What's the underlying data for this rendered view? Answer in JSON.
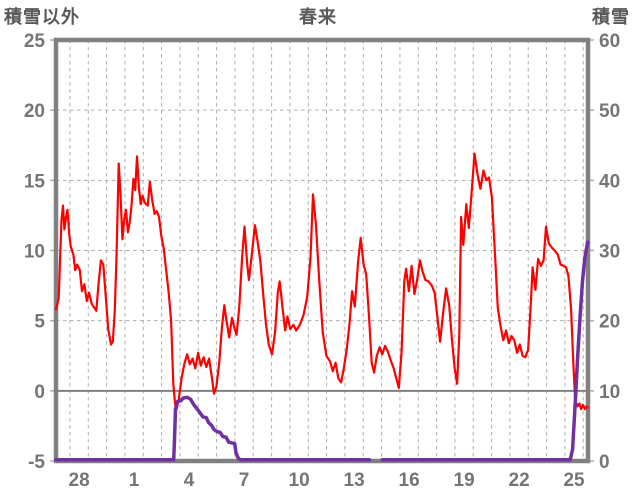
{
  "chart_data": {
    "type": "line",
    "title": "春来",
    "grid": true,
    "legend": false,
    "left_axis": {
      "title": "積雪以外",
      "min": -5,
      "max": 25,
      "ticks": [
        25,
        20,
        15,
        10,
        5,
        0,
        -5
      ]
    },
    "right_axis": {
      "title": "積雪",
      "min": 0,
      "max": 60,
      "ticks": [
        60,
        50,
        40,
        30,
        20,
        10,
        0
      ]
    },
    "x_axis": {
      "unit": "day",
      "tick_labels": [
        "28",
        "1",
        "4",
        "7",
        "10",
        "13",
        "16",
        "19",
        "22",
        "25"
      ],
      "label_positions": [
        1.26,
        4.26,
        7.26,
        10.26,
        13.26,
        16.26,
        19.26,
        22.26,
        25.26,
        28.26
      ],
      "gridline_first": 0.76,
      "gridline_step": 1,
      "gridline_count": 29,
      "span": 29.02
    },
    "zero_line": 0,
    "series": [
      {
        "name": "積雪以外",
        "axis": "left",
        "color": "#FF0000",
        "width": 2.2,
        "segments": [
          [
            [
              0,
              5.8
            ],
            [
              0.15,
              6.6
            ],
            [
              0.3,
              12.2
            ],
            [
              0.38,
              13.2
            ],
            [
              0.46,
              11.5
            ],
            [
              0.55,
              12.4
            ],
            [
              0.63,
              12.9
            ],
            [
              0.72,
              11.2
            ],
            [
              0.8,
              10.3
            ],
            [
              0.95,
              9.7
            ],
            [
              1.05,
              8.6
            ],
            [
              1.15,
              9.0
            ],
            [
              1.3,
              8.6
            ],
            [
              1.42,
              7.1
            ],
            [
              1.55,
              7.6
            ],
            [
              1.68,
              6.4
            ],
            [
              1.8,
              7.0
            ],
            [
              1.95,
              6.2
            ],
            [
              2.1,
              5.9
            ],
            [
              2.2,
              5.7
            ],
            [
              2.32,
              7.6
            ],
            [
              2.45,
              9.3
            ],
            [
              2.58,
              9.0
            ],
            [
              2.72,
              6.6
            ],
            [
              2.85,
              4.4
            ],
            [
              3.0,
              3.3
            ],
            [
              3.1,
              3.5
            ],
            [
              3.2,
              5.6
            ],
            [
              3.3,
              9.5
            ],
            [
              3.42,
              16.2
            ],
            [
              3.52,
              14.0
            ],
            [
              3.62,
              10.8
            ],
            [
              3.72,
              12.2
            ],
            [
              3.82,
              12.9
            ],
            [
              3.92,
              11.3
            ],
            [
              4.02,
              12.0
            ],
            [
              4.12,
              13.2
            ],
            [
              4.22,
              15.1
            ],
            [
              4.32,
              14.3
            ],
            [
              4.42,
              16.7
            ],
            [
              4.52,
              14.5
            ],
            [
              4.62,
              13.3
            ],
            [
              4.72,
              13.9
            ],
            [
              4.85,
              13.4
            ],
            [
              5.0,
              13.2
            ],
            [
              5.12,
              14.9
            ],
            [
              5.25,
              13.6
            ],
            [
              5.38,
              12.6
            ],
            [
              5.5,
              12.8
            ],
            [
              5.62,
              12.4
            ],
            [
              5.75,
              11.0
            ],
            [
              5.88,
              10.1
            ],
            [
              6.0,
              8.7
            ],
            [
              6.15,
              7.0
            ],
            [
              6.28,
              5.0
            ],
            [
              6.4,
              0.5
            ],
            [
              6.5,
              -1.0
            ],
            [
              6.58,
              -1.3
            ],
            [
              6.7,
              -0.6
            ],
            [
              6.85,
              0.9
            ],
            [
              7.0,
              1.9
            ],
            [
              7.15,
              2.6
            ],
            [
              7.3,
              1.9
            ],
            [
              7.45,
              2.3
            ],
            [
              7.6,
              1.6
            ],
            [
              7.75,
              2.7
            ],
            [
              7.9,
              1.8
            ],
            [
              8.05,
              2.4
            ],
            [
              8.2,
              1.7
            ],
            [
              8.35,
              2.3
            ],
            [
              8.5,
              1.0
            ],
            [
              8.62,
              -0.2
            ],
            [
              8.75,
              0.3
            ],
            [
              8.9,
              2.0
            ],
            [
              9.05,
              4.5
            ],
            [
              9.18,
              6.1
            ],
            [
              9.3,
              5.0
            ],
            [
              9.45,
              3.8
            ],
            [
              9.6,
              5.2
            ],
            [
              9.75,
              4.4
            ],
            [
              9.85,
              4.0
            ],
            [
              10.0,
              6.0
            ],
            [
              10.15,
              9.5
            ],
            [
              10.28,
              11.7
            ],
            [
              10.42,
              9.2
            ],
            [
              10.52,
              7.9
            ],
            [
              10.68,
              9.7
            ],
            [
              10.85,
              11.8
            ],
            [
              11.0,
              10.6
            ],
            [
              11.15,
              9.2
            ],
            [
              11.3,
              6.9
            ],
            [
              11.45,
              4.8
            ],
            [
              11.6,
              3.3
            ],
            [
              11.78,
              2.6
            ],
            [
              11.95,
              4.2
            ],
            [
              12.1,
              7.0
            ],
            [
              12.2,
              7.8
            ],
            [
              12.35,
              6.0
            ],
            [
              12.5,
              4.3
            ],
            [
              12.62,
              5.3
            ],
            [
              12.78,
              4.4
            ],
            [
              12.95,
              4.7
            ],
            [
              13.1,
              4.3
            ],
            [
              13.3,
              4.7
            ],
            [
              13.5,
              5.4
            ],
            [
              13.7,
              6.7
            ],
            [
              13.88,
              9.5
            ],
            [
              14.02,
              14.0
            ],
            [
              14.18,
              11.8
            ],
            [
              14.35,
              8.0
            ],
            [
              14.55,
              4.2
            ],
            [
              14.75,
              2.5
            ],
            [
              14.95,
              2.1
            ],
            [
              15.1,
              1.4
            ],
            [
              15.25,
              2.0
            ],
            [
              15.4,
              0.9
            ],
            [
              15.55,
              0.6
            ],
            [
              15.7,
              1.6
            ],
            [
              15.85,
              2.9
            ],
            [
              16.0,
              4.6
            ],
            [
              16.15,
              7.1
            ],
            [
              16.3,
              6.0
            ],
            [
              16.48,
              9.2
            ],
            [
              16.62,
              10.9
            ],
            [
              16.78,
              9.0
            ],
            [
              16.92,
              8.3
            ],
            [
              17.08,
              5.2
            ],
            [
              17.22,
              2.0
            ],
            [
              17.35,
              1.3
            ],
            [
              17.5,
              2.5
            ],
            [
              17.65,
              3.1
            ],
            [
              17.8,
              2.6
            ],
            [
              17.95,
              3.2
            ],
            [
              18.1,
              2.8
            ],
            [
              18.25,
              2.2
            ],
            [
              18.42,
              1.6
            ],
            [
              18.58,
              0.8
            ],
            [
              18.7,
              0.2
            ],
            [
              18.85,
              2.8
            ],
            [
              19.0,
              7.8
            ],
            [
              19.1,
              8.7
            ],
            [
              19.25,
              7.1
            ],
            [
              19.4,
              8.9
            ],
            [
              19.55,
              6.9
            ],
            [
              19.7,
              7.9
            ],
            [
              19.85,
              9.3
            ],
            [
              20.0,
              8.5
            ],
            [
              20.15,
              7.9
            ],
            [
              20.32,
              7.8
            ],
            [
              20.5,
              7.5
            ],
            [
              20.65,
              7.0
            ],
            [
              20.8,
              5.3
            ],
            [
              20.95,
              3.5
            ],
            [
              21.12,
              5.6
            ],
            [
              21.28,
              7.3
            ],
            [
              21.45,
              6.1
            ],
            [
              21.6,
              3.6
            ],
            [
              21.75,
              1.6
            ],
            [
              21.88,
              0.5
            ],
            [
              22.0,
              4.0
            ],
            [
              22.1,
              12.4
            ],
            [
              22.22,
              10.4
            ],
            [
              22.38,
              13.3
            ],
            [
              22.52,
              11.6
            ],
            [
              22.68,
              14.3
            ],
            [
              22.83,
              16.9
            ],
            [
              23.0,
              15.4
            ],
            [
              23.15,
              14.4
            ],
            [
              23.32,
              15.7
            ],
            [
              23.48,
              15.0
            ],
            [
              23.62,
              15.2
            ],
            [
              23.78,
              13.8
            ],
            [
              23.95,
              9.6
            ],
            [
              24.1,
              5.9
            ],
            [
              24.25,
              4.6
            ],
            [
              24.4,
              3.6
            ],
            [
              24.55,
              4.3
            ],
            [
              24.7,
              3.4
            ],
            [
              24.85,
              3.9
            ],
            [
              25.0,
              3.6
            ],
            [
              25.15,
              2.7
            ],
            [
              25.3,
              3.3
            ],
            [
              25.45,
              2.5
            ],
            [
              25.6,
              2.4
            ],
            [
              25.75,
              2.9
            ],
            [
              25.9,
              6.2
            ],
            [
              26.0,
              8.8
            ],
            [
              26.15,
              7.2
            ],
            [
              26.3,
              9.4
            ],
            [
              26.45,
              8.9
            ],
            [
              26.6,
              9.3
            ],
            [
              26.73,
              11.7
            ],
            [
              26.88,
              10.5
            ],
            [
              27.05,
              10.2
            ],
            [
              27.2,
              10.0
            ],
            [
              27.38,
              9.7
            ],
            [
              27.52,
              9.0
            ],
            [
              27.68,
              8.9
            ],
            [
              27.82,
              8.8
            ],
            [
              27.95,
              8.2
            ],
            [
              28.1,
              5.8
            ],
            [
              28.22,
              2.0
            ],
            [
              28.32,
              -0.7
            ],
            [
              28.45,
              -1.1
            ],
            [
              28.55,
              -0.9
            ],
            [
              28.65,
              -1.3
            ],
            [
              28.75,
              -1.0
            ],
            [
              28.85,
              -1.3
            ],
            [
              28.95,
              -1.1
            ],
            [
              29.0,
              -1.2
            ]
          ]
        ]
      },
      {
        "name": "積雪",
        "axis": "right",
        "color": "#7030A0",
        "width": 3.5,
        "segments": [
          [
            [
              0,
              0
            ],
            [
              6.42,
              0
            ],
            [
              6.46,
              2.5
            ],
            [
              6.52,
              7.2
            ],
            [
              6.62,
              8.3
            ],
            [
              6.8,
              8.4
            ],
            [
              6.95,
              8.8
            ],
            [
              7.15,
              8.9
            ],
            [
              7.35,
              8.6
            ],
            [
              7.5,
              7.9
            ],
            [
              7.68,
              7.3
            ],
            [
              7.85,
              6.7
            ],
            [
              8.02,
              6.1
            ],
            [
              8.2,
              6.0
            ],
            [
              8.32,
              5.3
            ],
            [
              8.48,
              4.9
            ],
            [
              8.62,
              4.3
            ],
            [
              8.78,
              4.0
            ],
            [
              8.95,
              3.9
            ],
            [
              9.1,
              3.3
            ],
            [
              9.28,
              3.2
            ],
            [
              9.42,
              2.5
            ],
            [
              9.6,
              2.4
            ],
            [
              9.75,
              2.3
            ],
            [
              9.82,
              1.0
            ],
            [
              9.92,
              0.3
            ],
            [
              10.05,
              0
            ],
            [
              17.1,
              0
            ]
          ],
          [
            [
              17.8,
              0
            ],
            [
              28.05,
              0
            ],
            [
              28.18,
              1.5
            ],
            [
              28.32,
              8.0
            ],
            [
              28.45,
              14.5
            ],
            [
              28.58,
              20.0
            ],
            [
              28.72,
              25.5
            ],
            [
              28.85,
              28.8
            ],
            [
              29.0,
              31.0
            ]
          ]
        ]
      }
    ],
    "style": {
      "border_color": "#808080",
      "grid_color": "#ADADAD",
      "zero_line_color": "#808080",
      "text_color": "#757575",
      "title_color": "#595959",
      "background": "#FFFFFF"
    }
  }
}
